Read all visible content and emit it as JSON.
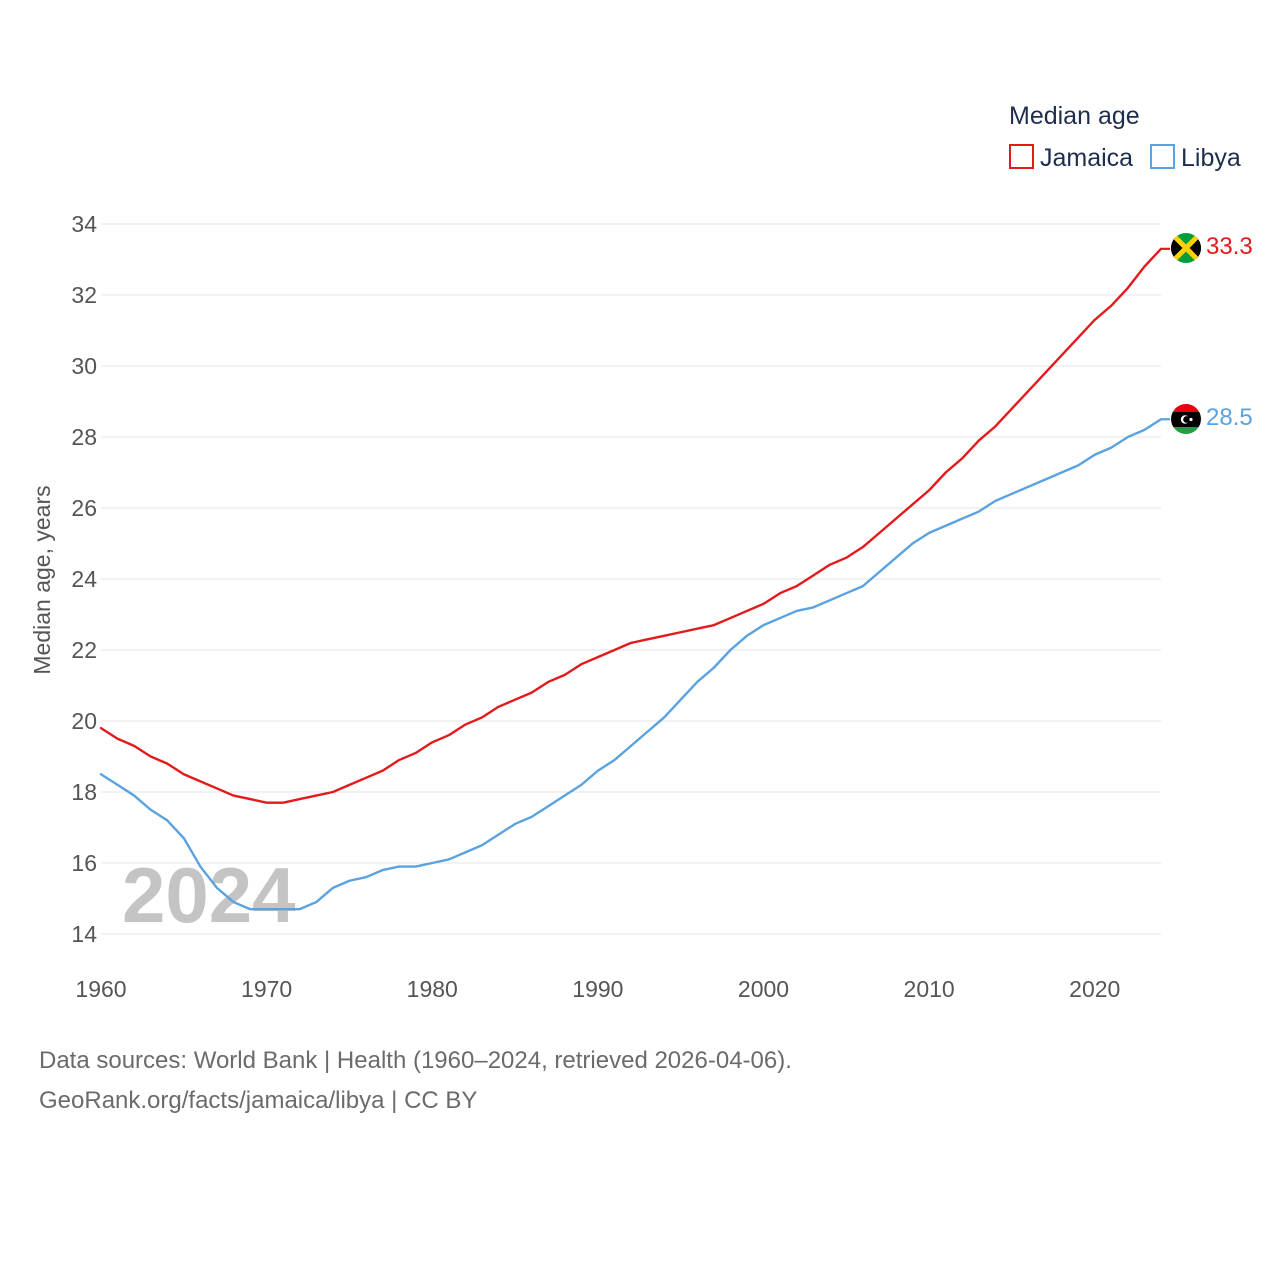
{
  "chart_data": {
    "type": "line",
    "title": "Median age",
    "xlabel": "",
    "ylabel": "Median age, years",
    "xlim": [
      1960,
      2024
    ],
    "ylim": [
      14,
      34
    ],
    "x_ticks": [
      1960,
      1970,
      1980,
      1990,
      2000,
      2010,
      2020
    ],
    "y_ticks": [
      14,
      16,
      18,
      20,
      22,
      24,
      26,
      28,
      30,
      32,
      34
    ],
    "grid": "horizontal",
    "legend_position": "top-right",
    "year_label": "2024",
    "x": [
      1960,
      1961,
      1962,
      1963,
      1964,
      1965,
      1966,
      1967,
      1968,
      1969,
      1970,
      1971,
      1972,
      1973,
      1974,
      1975,
      1976,
      1977,
      1978,
      1979,
      1980,
      1981,
      1982,
      1983,
      1984,
      1985,
      1986,
      1987,
      1988,
      1989,
      1990,
      1991,
      1992,
      1993,
      1994,
      1995,
      1996,
      1997,
      1998,
      1999,
      2000,
      2001,
      2002,
      2003,
      2004,
      2005,
      2006,
      2007,
      2008,
      2009,
      2010,
      2011,
      2012,
      2013,
      2014,
      2015,
      2016,
      2017,
      2018,
      2019,
      2020,
      2021,
      2022,
      2023,
      2024
    ],
    "series": [
      {
        "name": "Jamaica",
        "color": "#e31a1c",
        "end_label": "33.3",
        "flag": "jamaica-flag",
        "values": [
          19.8,
          19.5,
          19.3,
          19.0,
          18.8,
          18.5,
          18.3,
          18.1,
          17.9,
          17.8,
          17.7,
          17.7,
          17.8,
          17.9,
          18.0,
          18.2,
          18.4,
          18.6,
          18.9,
          19.1,
          19.4,
          19.6,
          19.9,
          20.1,
          20.4,
          20.6,
          20.8,
          21.1,
          21.3,
          21.6,
          21.8,
          22.0,
          22.2,
          22.3,
          22.4,
          22.5,
          22.6,
          22.7,
          22.9,
          23.1,
          23.3,
          23.6,
          23.8,
          24.1,
          24.4,
          24.6,
          24.9,
          25.3,
          25.7,
          26.1,
          26.5,
          27.0,
          27.4,
          27.9,
          28.3,
          28.8,
          29.3,
          29.8,
          30.3,
          30.8,
          31.3,
          31.7,
          32.2,
          32.8,
          33.3
        ]
      },
      {
        "name": "Libya",
        "color": "#5aa2e0",
        "end_label": "28.5",
        "flag": "libya-flag",
        "values": [
          18.5,
          18.2,
          17.9,
          17.5,
          17.2,
          16.7,
          15.9,
          15.3,
          14.9,
          14.7,
          14.7,
          14.7,
          14.7,
          14.9,
          15.3,
          15.5,
          15.6,
          15.8,
          15.9,
          15.9,
          16.0,
          16.1,
          16.3,
          16.5,
          16.8,
          17.1,
          17.3,
          17.6,
          17.9,
          18.2,
          18.6,
          18.9,
          19.3,
          19.7,
          20.1,
          20.6,
          21.1,
          21.5,
          22.0,
          22.4,
          22.7,
          22.9,
          23.1,
          23.2,
          23.4,
          23.6,
          23.8,
          24.2,
          24.6,
          25.0,
          25.3,
          25.5,
          25.7,
          25.9,
          26.2,
          26.4,
          26.6,
          26.8,
          27.0,
          27.2,
          27.5,
          27.7,
          28.0,
          28.2,
          28.5
        ]
      }
    ]
  },
  "footer": {
    "sources": "Data sources: World Bank | Health (1960–2024, retrieved 2026-04-06).",
    "link": "GeoRank.org/facts/jamaica/libya | CC BY"
  }
}
